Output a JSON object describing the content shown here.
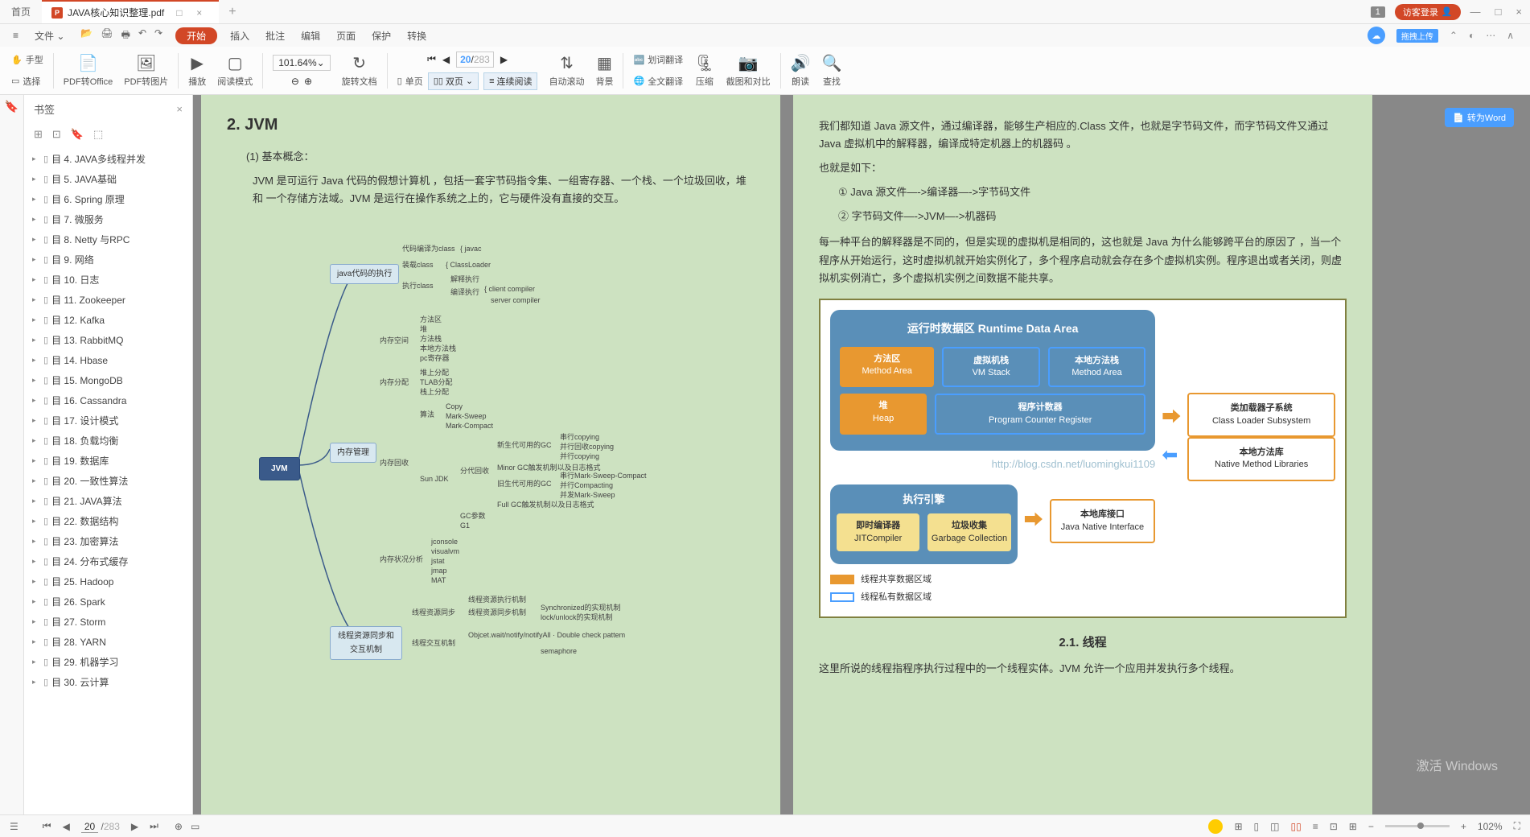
{
  "titleBar": {
    "homeTab": "首页",
    "fileName": "JAVA核心知识整理.pdf",
    "badge1": "1",
    "loginBtn": "访客登录",
    "uploadBadge": "拖拽上传"
  },
  "menuBar": {
    "fileMenu": "文件",
    "start": "开始",
    "items": [
      "插入",
      "批注",
      "编辑",
      "页面",
      "保护",
      "转换"
    ]
  },
  "ribbon": {
    "hand": "手型",
    "select": "选择",
    "pdfOffice": "PDF转Office",
    "pdfImage": "PDF转图片",
    "play": "播放",
    "readMode": "阅读模式",
    "zoom": "101.64%",
    "rotate": "旋转文档",
    "pageCur": "20",
    "pageTotal": "283",
    "singlePage": "单页",
    "doublePage": "双页",
    "continuous": "连续阅读",
    "autoScroll": "自动滚动",
    "background": "背景",
    "wordTranslate": "划词翻译",
    "fullTranslate": "全文翻译",
    "compress": "压缩",
    "screenshot": "截图和对比",
    "speak": "朗读",
    "search": "查找"
  },
  "sidebar": {
    "title": "书签",
    "items": [
      "目 4. JAVA多线程并发",
      "目 5. JAVA基础",
      "目 6. Spring 原理",
      "目 7.   微服务",
      "目 8. Netty 与RPC",
      "目 9. 网络",
      "目 10. 日志",
      "目 11. Zookeeper",
      "目 12. Kafka",
      "目 13. RabbitMQ",
      "目 14. Hbase",
      "目 15. MongoDB",
      "目 16. Cassandra",
      "目 17. 设计模式",
      "目 18. 负载均衡",
      "目 19. 数据库",
      "目 20. 一致性算法",
      "目 21. JAVA算法",
      "目 22. 数据结构",
      "目 23. 加密算法",
      "目 24. 分布式缓存",
      "目 25. Hadoop",
      "目 26. Spark",
      "目 27. Storm",
      "目 28. YARN",
      "目 29. 机器学习",
      "目 30. 云计算"
    ]
  },
  "convertBtn": "转为Word",
  "leftPage": {
    "title": "2. JVM",
    "concept": "(1) 基本概念：",
    "para1": "JVM 是可运行 Java 代码的假想计算机 ，包括一套字节码指令集、一组寄存器、一个栈、一个垃圾回收，堆 和 一个存储方法域。JVM 是运行在操作系统之上的，它与硬件没有直接的交互。",
    "mindmap": {
      "root": "JVM",
      "javaExec": {
        "label": "java代码的执行",
        "items": [
          "代码编译为class",
          "装载class",
          "执行class"
        ],
        "sub1": "javac",
        "sub2": "ClassLoader",
        "sub3a": "解释执行",
        "sub3b": "编译执行",
        "sub3c1": "client compiler",
        "sub3c2": "server compiler"
      },
      "memMgmt": {
        "label": "内存管理",
        "memSpace": {
          "label": "内存空间",
          "items": [
            "方法区",
            "堆",
            "方法栈",
            "本地方法栈",
            "pc寄存器"
          ]
        },
        "memAlloc": {
          "label": "内存分配",
          "items": [
            "堆上分配",
            "TLAB分配",
            "栈上分配"
          ]
        },
        "gc": {
          "label": "内存回收",
          "algo": {
            "label": "算法",
            "items": [
              "Copy",
              "Mark-Sweep",
              "Mark-Compact"
            ]
          },
          "sunjdk": {
            "label": "Sun JDK",
            "young": {
              "label": "分代回收",
              "newgen": "新生代可用的GC",
              "newsubs": [
                "串行copying",
                "并行回收copying",
                "并行copying"
              ],
              "minor": "Minor GC触发机制以及日志格式",
              "oldgen": "旧生代可用的GC",
              "oldsubs": [
                "串行Mark-Sweep-Compact",
                "并行Compacting",
                "并发Mark-Sweep"
              ],
              "full": "Full GC触发机制以及日志格式"
            },
            "gcparam": "GC参数",
            "g1": "G1"
          }
        },
        "memAnalysis": {
          "label": "内存状况分析",
          "items": [
            "jconsole",
            "visualvm",
            "jstat",
            "jmap",
            "MAT"
          ]
        }
      },
      "threadSync": {
        "label": "线程资源同步和交互机制",
        "sync": {
          "label": "线程资源同步",
          "items": [
            "线程资源执行机制",
            "线程资源同步机制"
          ],
          "sync2": [
            "Synchronized的实现机制",
            "lock/unlock的实现机制"
          ]
        },
        "comm": {
          "label": "线程交互机制",
          "items": [
            "Objcet.wait/notify/notifyAll · Double check pattem",
            "semaphore"
          ]
        }
      }
    }
  },
  "rightPage": {
    "para1": "我们都知道 Java 源文件，通过编译器，能够生产相应的.Class 文件，也就是字节码文件，而字节码文件又通过 Java 虚拟机中的解释器，编译成特定机器上的机器码 。",
    "para2": "也就是如下：",
    "line1": "① Java 源文件—->编译器—->字节码文件",
    "line2": "② 字节码文件—->JVM—->机器码",
    "para3": "每一种平台的解释器是不同的，但是实现的虚拟机是相同的，这也就是 Java 为什么能够跨平台的原因了 ，当一个程序从开始运行，这时虚拟机就开始实例化了，多个程序启动就会存在多个虚拟机实例。程序退出或者关闭，则虚拟机实例消亡，多个虚拟机实例之间数据不能共享。",
    "rda": {
      "title": "运行时数据区  Runtime Data Area",
      "methodArea": {
        "cn": "方法区",
        "en": "Method Area"
      },
      "vmStack": {
        "cn": "虚拟机栈",
        "en": "VM Stack"
      },
      "nativeStack": {
        "cn": "本地方法栈",
        "en": "Method Area"
      },
      "heap": {
        "cn": "堆",
        "en": "Heap"
      },
      "pc": {
        "cn": "程序计数器",
        "en": "Program Counter Register"
      },
      "classLoader": {
        "cn": "类加载器子系统",
        "en": "Class Loader Subsystem"
      },
      "engine": "执行引擎",
      "jit": {
        "cn": "即时编译器",
        "en": "JITCompiler"
      },
      "gc": {
        "cn": "垃圾收集",
        "en": "Garbage Collection"
      },
      "jni": {
        "cn": "本地库接口",
        "en": "Java Native Interface"
      },
      "nativeLib": {
        "cn": "本地方法库",
        "en": "Native Method Libraries"
      },
      "legend1": "线程共享数据区域",
      "legend2": "线程私有数据区域",
      "watermark": "http://blog.csdn.net/luomingkui1109",
      "colors": {
        "orange": "#e89830",
        "blue": "#5a8fb8",
        "border": "#808040"
      }
    },
    "sec21": "2.1. 线程",
    "para4": "这里所说的线程指程序执行过程中的一个线程实体。JVM 允许一个应用并发执行多个线程。"
  },
  "windowsActivate": {
    "line1": "激活 Windows"
  },
  "statusBar": {
    "pageCur": "20",
    "pageTotal": "283",
    "zoom": "102%"
  }
}
